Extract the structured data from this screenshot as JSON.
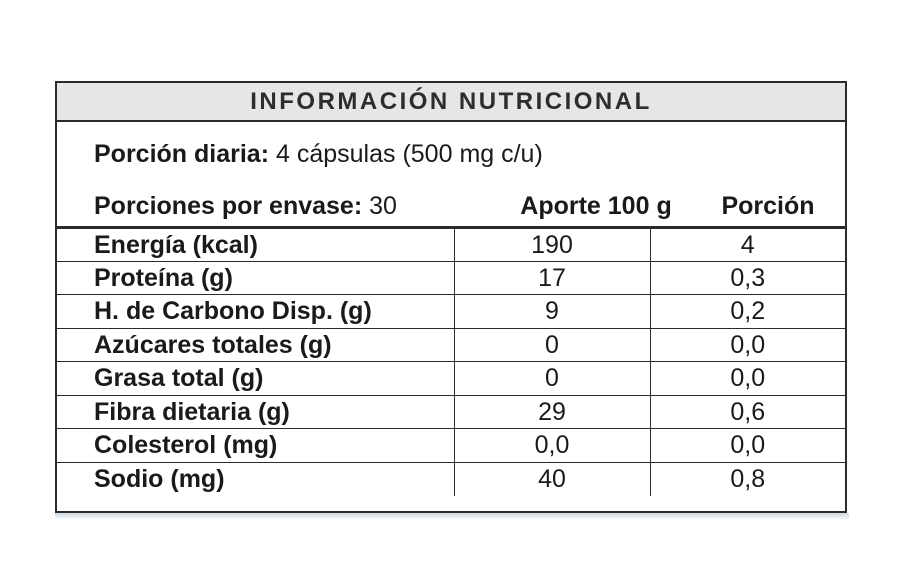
{
  "title": "INFORMACIÓN NUTRICIONAL",
  "serving": {
    "label": "Porción diaria:",
    "value": " 4 cápsulas (500 mg c/u)"
  },
  "servings_per_container": {
    "label": "Porciones por envase:",
    "value": " 30"
  },
  "columns": {
    "per_100g": "Aporte 100 g",
    "per_serving": "Porción"
  },
  "rows": [
    {
      "name": "Energía (kcal)",
      "per_100g": "190",
      "per_serving": "4"
    },
    {
      "name": "Proteína (g)",
      "per_100g": "17",
      "per_serving": "0,3"
    },
    {
      "name": "H. de Carbono Disp. (g)",
      "per_100g": "9",
      "per_serving": "0,2"
    },
    {
      "name": "Azúcares totales (g)",
      "per_100g": "0",
      "per_serving": "0,0"
    },
    {
      "name": "Grasa total (g)",
      "per_100g": "0",
      "per_serving": "0,0"
    },
    {
      "name": "Fibra dietaria (g)",
      "per_100g": "29",
      "per_serving": "0,6"
    },
    {
      "name": "Colesterol (mg)",
      "per_100g": "0,0",
      "per_serving": "0,0"
    },
    {
      "name": "Sodio (mg)",
      "per_100g": "40",
      "per_serving": "0,8"
    }
  ]
}
